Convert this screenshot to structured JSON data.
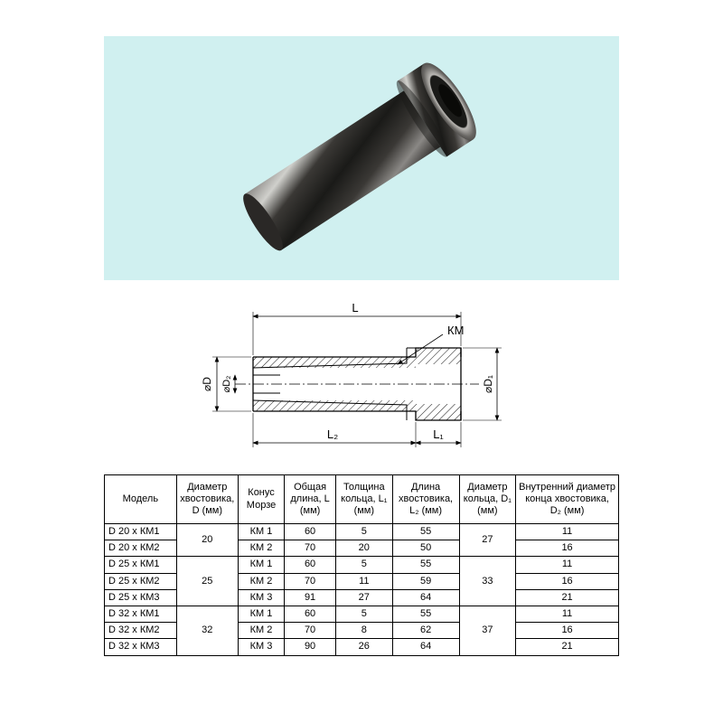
{
  "photo": {
    "bg_color": "#d0f0f0",
    "part_color_dark": "#1a1a18",
    "part_color_mid": "#3a3835",
    "part_color_light": "#8a8885",
    "part_highlight": "#d0d0cc"
  },
  "diagram": {
    "labels": {
      "L": "L",
      "L1": "L₁",
      "L2": "L₂",
      "D": "⌀D",
      "D1": "⌀D₁",
      "D2": "⌀D₂",
      "KM": "КМ"
    },
    "stroke": "#000000",
    "fill": "#ffffff",
    "hatch": "#000000"
  },
  "table": {
    "headers": [
      "Модель",
      "Диаметр хвостовика, D (мм)",
      "Конус Морзе",
      "Общая длина, L (мм)",
      "Толщина кольца, L₁ (мм)",
      "Длина хвостовика, L₂ (мм)",
      "Диаметр кольца, D₁ (мм)",
      "Внутренний диаметр конца хвостовика, D₂ (мм)"
    ],
    "groups": [
      {
        "D": "20",
        "D1": "27",
        "rows": [
          {
            "model": "D 20 x КМ1",
            "km": "КМ 1",
            "L": "60",
            "L1": "5",
            "L2": "55",
            "D2": "11"
          },
          {
            "model": "D 20 x КМ2",
            "km": "КМ 2",
            "L": "70",
            "L1": "20",
            "L2": "50",
            "D2": "16"
          }
        ]
      },
      {
        "D": "25",
        "D1": "33",
        "rows": [
          {
            "model": "D 25 x КМ1",
            "km": "КМ 1",
            "L": "60",
            "L1": "5",
            "L2": "55",
            "D2": "11"
          },
          {
            "model": "D 25 x КМ2",
            "km": "КМ 2",
            "L": "70",
            "L1": "11",
            "L2": "59",
            "D2": "16"
          },
          {
            "model": "D 25 x КМ3",
            "km": "КМ 3",
            "L": "91",
            "L1": "27",
            "L2": "64",
            "D2": "21"
          }
        ]
      },
      {
        "D": "32",
        "D1": "37",
        "rows": [
          {
            "model": "D 32 x КМ1",
            "km": "КМ 1",
            "L": "60",
            "L1": "5",
            "L2": "55",
            "D2": "11"
          },
          {
            "model": "D 32 x КМ2",
            "km": "КМ 2",
            "L": "70",
            "L1": "8",
            "L2": "62",
            "D2": "16"
          },
          {
            "model": "D 32 x КМ3",
            "km": "КМ 3",
            "L": "90",
            "L1": "26",
            "L2": "64",
            "D2": "21"
          }
        ]
      }
    ],
    "col_widths_pct": [
      14,
      12,
      9,
      10,
      11,
      13,
      11,
      20
    ],
    "border_color": "#000000",
    "fontsize": 11
  }
}
